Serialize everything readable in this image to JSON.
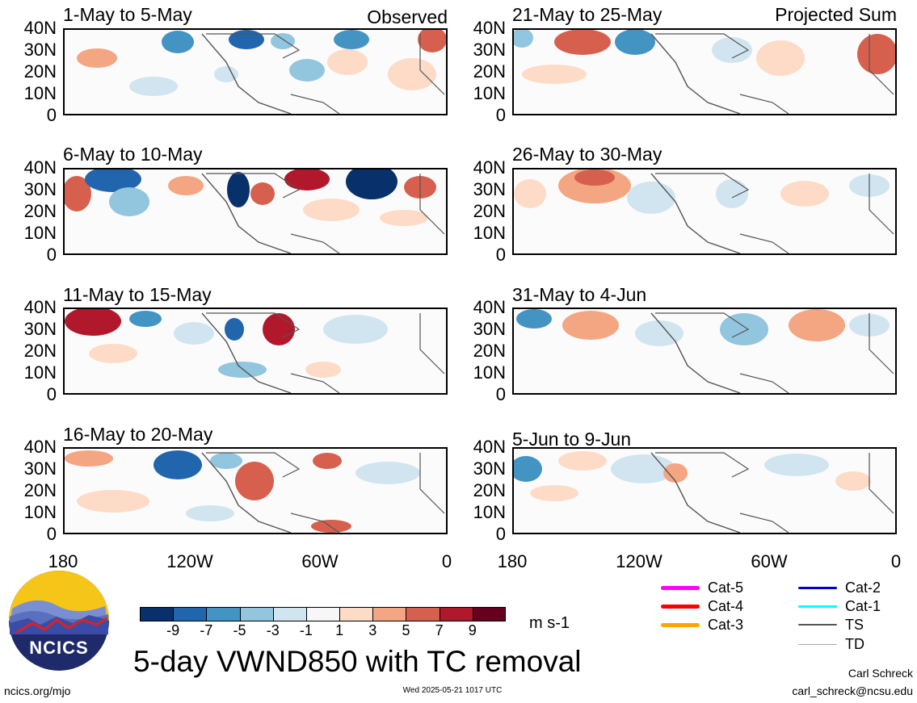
{
  "panels_left": [
    {
      "title": "1-May to 5-May",
      "tag": "Observed"
    },
    {
      "title": "6-May to 10-May",
      "tag": ""
    },
    {
      "title": "11-May to 15-May",
      "tag": ""
    },
    {
      "title": "16-May to 20-May",
      "tag": ""
    }
  ],
  "panels_right": [
    {
      "title": "21-May to 25-May",
      "tag": "Projected Sum"
    },
    {
      "title": "26-May to 30-May",
      "tag": ""
    },
    {
      "title": "31-May to 4-Jun",
      "tag": ""
    },
    {
      "title": "5-Jun to 9-Jun",
      "tag": ""
    }
  ],
  "lat_labels": [
    "40N",
    "30N",
    "20N",
    "10N",
    "0"
  ],
  "lon_labels": [
    "180",
    "120W",
    "60W",
    "0"
  ],
  "colorbar": {
    "colors": [
      "#08306b",
      "#2166ac",
      "#4393c3",
      "#92c5de",
      "#d1e5f0",
      "#f7f7f7",
      "#fddbc7",
      "#f4a582",
      "#d6604d",
      "#b2182b",
      "#67001f"
    ],
    "labels": [
      "-9",
      "-7",
      "-5",
      "-3",
      "-1",
      "1",
      "3",
      "5",
      "7",
      "9"
    ],
    "units": "m s-1"
  },
  "legend": [
    {
      "label": "Cat-5",
      "color": "#ff00ff"
    },
    {
      "label": "Cat-4",
      "color": "#ff0000"
    },
    {
      "label": "Cat-3",
      "color": "#ffa500"
    },
    {
      "label": "Cat-2",
      "color": "#0000cd"
    },
    {
      "label": "Cat-1",
      "color": "#00ffff"
    },
    {
      "label": "TS",
      "color": "#555555"
    },
    {
      "label": "TD",
      "color": "#aaaaaa"
    }
  ],
  "main_title": "5-day VWND850 with TC removal",
  "logo_text": "NCICS",
  "footer": {
    "url": "ncics.org/mjo",
    "timestamp": "Wed 2025-05-21 1017 UTC",
    "author": "Carl Schreck",
    "email": "carl_schreck@ncsu.edu"
  }
}
